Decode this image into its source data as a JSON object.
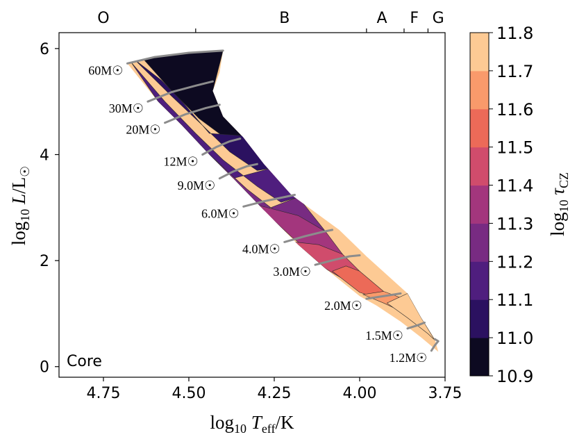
{
  "chart_data": {
    "type": "heatmap",
    "title": "",
    "panel_label": "Core",
    "xlabel": "log10 Teff/K",
    "ylabel": "log10 L/L☉",
    "xlim": [
      4.88,
      3.75
    ],
    "ylim": [
      -0.2,
      6.3
    ],
    "x_ticks": [
      4.75,
      4.5,
      4.25,
      4.0,
      3.75
    ],
    "x_tick_labels": [
      "4.75",
      "4.50",
      "4.25",
      "4.00",
      "3.75"
    ],
    "y_ticks": [
      0,
      2,
      4,
      6
    ],
    "y_tick_labels": [
      "0",
      "2",
      "4",
      "6"
    ],
    "spectral_types": [
      {
        "label": "O",
        "x": 4.75
      },
      {
        "label": "B",
        "x": 4.22
      },
      {
        "label": "A",
        "x": 3.935
      },
      {
        "label": "F",
        "x": 3.84
      },
      {
        "label": "G",
        "x": 3.77
      }
    ],
    "spectral_boundaries": [
      4.48,
      3.98,
      3.87,
      3.8
    ],
    "colorbar": {
      "label": "log10 τCZ",
      "ticks": [
        10.9,
        11.0,
        11.1,
        11.2,
        11.3,
        11.4,
        11.5,
        11.6,
        11.7,
        11.8
      ],
      "tick_labels": [
        "10.9",
        "11.0",
        "11.1",
        "11.2",
        "11.3",
        "11.4",
        "11.5",
        "11.6",
        "11.7",
        "11.8"
      ],
      "colors": [
        "#0d0a21",
        "#2b1160",
        "#4f1e7e",
        "#782b82",
        "#a3367d",
        "#d04c6c",
        "#ec6a58",
        "#f99a6b",
        "#fdca94"
      ]
    },
    "tracks": [
      {
        "label": "60M☉",
        "mass": 60,
        "points": [
          [
            4.68,
            5.72
          ],
          [
            4.6,
            5.84
          ],
          [
            4.5,
            5.92
          ],
          [
            4.4,
            5.96
          ]
        ]
      },
      {
        "label": "30M☉",
        "mass": 30,
        "points": [
          [
            4.62,
            5.0
          ],
          [
            4.55,
            5.18
          ],
          [
            4.48,
            5.3
          ],
          [
            4.43,
            5.38
          ]
        ]
      },
      {
        "label": "20M☉",
        "mass": 20,
        "points": [
          [
            4.57,
            4.6
          ],
          [
            4.51,
            4.76
          ],
          [
            4.45,
            4.88
          ],
          [
            4.41,
            4.94
          ]
        ]
      },
      {
        "label": "12M☉",
        "mass": 12,
        "points": [
          [
            4.46,
            4.0
          ],
          [
            4.42,
            4.14
          ],
          [
            4.38,
            4.25
          ],
          [
            4.35,
            4.3
          ]
        ]
      },
      {
        "label": "9.0M☉",
        "mass": 9.0,
        "points": [
          [
            4.41,
            3.55
          ],
          [
            4.37,
            3.68
          ],
          [
            4.33,
            3.78
          ],
          [
            4.3,
            3.82
          ]
        ]
      },
      {
        "label": "6.0M☉",
        "mass": 6.0,
        "points": [
          [
            4.34,
            3.02
          ],
          [
            4.28,
            3.12
          ],
          [
            4.22,
            3.2
          ],
          [
            4.19,
            3.24
          ]
        ]
      },
      {
        "label": "4.0M☉",
        "mass": 4.0,
        "points": [
          [
            4.22,
            2.35
          ],
          [
            4.16,
            2.46
          ],
          [
            4.11,
            2.54
          ],
          [
            4.08,
            2.58
          ]
        ]
      },
      {
        "label": "3.0M☉",
        "mass": 3.0,
        "points": [
          [
            4.13,
            1.92
          ],
          [
            4.07,
            2.02
          ],
          [
            4.03,
            2.08
          ],
          [
            4.0,
            2.1
          ]
        ]
      },
      {
        "label": "2.0M☉",
        "mass": 2.0,
        "points": [
          [
            3.98,
            1.28
          ],
          [
            3.94,
            1.32
          ],
          [
            3.9,
            1.36
          ],
          [
            3.88,
            1.38
          ]
        ]
      },
      {
        "label": "1.5M☉",
        "mass": 1.5,
        "points": [
          [
            3.86,
            0.72
          ],
          [
            3.83,
            0.78
          ],
          [
            3.81,
            0.83
          ]
        ]
      },
      {
        "label": "1.2M☉",
        "mass": 1.2,
        "points": [
          [
            3.79,
            0.3
          ],
          [
            3.78,
            0.4
          ],
          [
            3.77,
            0.48
          ],
          [
            3.78,
            0.52
          ]
        ]
      }
    ],
    "region_outline": [
      [
        4.68,
        5.72
      ],
      [
        4.6,
        5.84
      ],
      [
        4.5,
        5.92
      ],
      [
        4.4,
        5.96
      ],
      [
        4.41,
        5.55
      ],
      [
        4.43,
        5.2
      ],
      [
        4.4,
        4.72
      ],
      [
        4.34,
        4.32
      ],
      [
        4.28,
        3.82
      ],
      [
        4.2,
        3.24
      ],
      [
        4.06,
        2.58
      ],
      [
        3.98,
        2.08
      ],
      [
        3.86,
        1.38
      ],
      [
        3.82,
        0.92
      ],
      [
        3.78,
        0.52
      ],
      [
        3.77,
        0.28
      ],
      [
        3.82,
        0.55
      ],
      [
        3.88,
        0.85
      ],
      [
        3.95,
        1.15
      ],
      [
        4.0,
        1.33
      ],
      [
        4.1,
        1.85
      ],
      [
        4.18,
        2.3
      ],
      [
        4.28,
        2.95
      ],
      [
        4.37,
        3.55
      ],
      [
        4.44,
        4.0
      ],
      [
        4.52,
        4.55
      ],
      [
        4.59,
        5.0
      ],
      [
        4.64,
        5.4
      ]
    ],
    "contour_bands": [
      {
        "value": 10.9,
        "points": [
          [
            4.64,
            5.85
          ],
          [
            4.4,
            5.96
          ],
          [
            4.43,
            5.2
          ],
          [
            4.33,
            4.35
          ],
          [
            4.38,
            4.25
          ],
          [
            4.47,
            4.68
          ],
          [
            4.55,
            5.2
          ]
        ]
      },
      {
        "value": 11.0,
        "points": [
          [
            4.66,
            5.8
          ],
          [
            4.58,
            5.4
          ],
          [
            4.52,
            5.0
          ],
          [
            4.44,
            4.4
          ],
          [
            4.33,
            4.35
          ],
          [
            4.26,
            3.74
          ],
          [
            4.3,
            3.7
          ],
          [
            4.38,
            4.05
          ],
          [
            4.46,
            4.55
          ],
          [
            4.55,
            5.1
          ]
        ]
      },
      {
        "value": 11.1,
        "points": [
          [
            4.67,
            5.75
          ],
          [
            4.59,
            5.0
          ],
          [
            4.52,
            4.55
          ],
          [
            4.44,
            4.0
          ],
          [
            4.37,
            3.55
          ],
          [
            4.26,
            3.74
          ],
          [
            4.18,
            3.2
          ],
          [
            4.23,
            3.1
          ],
          [
            4.3,
            3.4
          ],
          [
            4.4,
            3.9
          ],
          [
            4.48,
            4.4
          ],
          [
            4.57,
            5.0
          ]
        ]
      },
      {
        "value": 11.2,
        "points": [
          [
            4.44,
            4.0
          ],
          [
            4.37,
            3.55
          ],
          [
            4.28,
            2.95
          ],
          [
            4.18,
            3.2
          ],
          [
            4.1,
            2.55
          ],
          [
            4.14,
            2.4
          ],
          [
            4.22,
            2.8
          ],
          [
            4.33,
            3.35
          ]
        ]
      },
      {
        "value": 11.3,
        "points": [
          [
            4.3,
            3.05
          ],
          [
            4.2,
            2.45
          ],
          [
            4.12,
            2.05
          ],
          [
            4.05,
            2.12
          ],
          [
            4.1,
            2.55
          ],
          [
            4.18,
            2.85
          ]
        ]
      },
      {
        "value": 11.4,
        "points": [
          [
            4.19,
            2.35
          ],
          [
            4.1,
            1.85
          ],
          [
            4.04,
            1.62
          ],
          [
            4.0,
            1.8
          ],
          [
            4.05,
            2.12
          ],
          [
            4.12,
            2.3
          ]
        ]
      },
      {
        "value": 11.5,
        "points": [
          [
            4.08,
            1.8
          ],
          [
            4.0,
            1.4
          ],
          [
            3.95,
            1.3
          ],
          [
            3.93,
            1.42
          ],
          [
            4.0,
            1.8
          ],
          [
            4.04,
            1.9
          ]
        ]
      },
      {
        "value": 11.6,
        "points": [
          [
            3.99,
            1.36
          ],
          [
            3.93,
            1.2
          ],
          [
            3.88,
            1.05
          ],
          [
            3.88,
            1.3
          ],
          [
            3.93,
            1.42
          ]
        ]
      },
      {
        "value": 11.7,
        "points": [
          [
            3.92,
            1.2
          ],
          [
            3.86,
            0.92
          ],
          [
            3.8,
            0.62
          ],
          [
            3.78,
            0.5
          ],
          [
            3.82,
            0.92
          ],
          [
            3.86,
            1.38
          ]
        ]
      }
    ]
  }
}
